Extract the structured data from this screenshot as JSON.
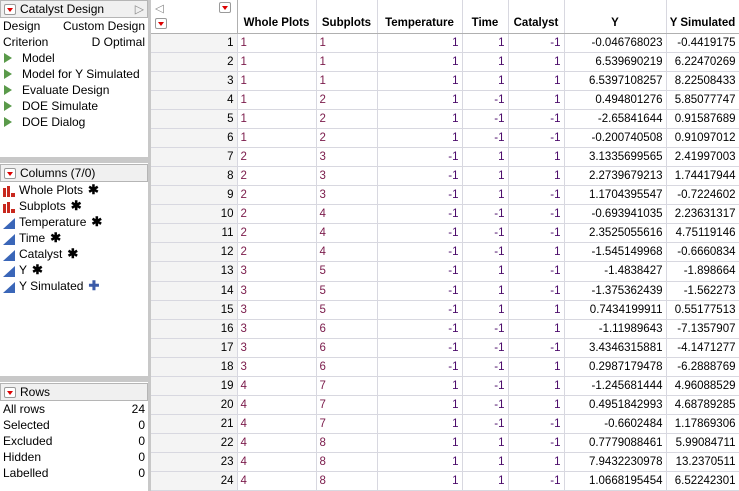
{
  "design_panel": {
    "title": "Catalyst Design",
    "rows": [
      {
        "label": "Design",
        "value": "Custom Design"
      },
      {
        "label": "Criterion",
        "value": "D Optimal"
      }
    ],
    "scripts": [
      "Model",
      "Model for Y Simulated",
      "Evaluate Design",
      "DOE Simulate",
      "DOE Dialog"
    ]
  },
  "columns_panel": {
    "title": "Columns (7/0)",
    "items": [
      {
        "name": "Whole Plots",
        "type": "nominal",
        "badge": "asterisk"
      },
      {
        "name": "Subplots",
        "type": "nominal",
        "badge": "asterisk"
      },
      {
        "name": "Temperature",
        "type": "continuous",
        "badge": "asterisk"
      },
      {
        "name": "Time",
        "type": "continuous",
        "badge": "asterisk"
      },
      {
        "name": "Catalyst",
        "type": "continuous",
        "badge": "asterisk"
      },
      {
        "name": "Y",
        "type": "continuous",
        "badge": "asterisk"
      },
      {
        "name": "Y Simulated",
        "type": "continuous",
        "badge": "plus"
      }
    ]
  },
  "rows_panel": {
    "title": "Rows",
    "items": [
      {
        "label": "All rows",
        "value": "24"
      },
      {
        "label": "Selected",
        "value": "0"
      },
      {
        "label": "Excluded",
        "value": "0"
      },
      {
        "label": "Hidden",
        "value": "0"
      },
      {
        "label": "Labelled",
        "value": "0"
      }
    ]
  },
  "table": {
    "headers": [
      "Whole Plots",
      "Subplots",
      "Temperature",
      "Time",
      "Catalyst",
      "Y",
      "Y Simulated"
    ],
    "rows": [
      [
        "1",
        "1",
        "1",
        "1",
        "-1",
        "-0.046768023",
        "-0.4419175"
      ],
      [
        "1",
        "1",
        "1",
        "1",
        "1",
        "6.539690219",
        "6.22470269"
      ],
      [
        "1",
        "1",
        "1",
        "1",
        "1",
        "6.5397108257",
        "8.22508433"
      ],
      [
        "1",
        "2",
        "1",
        "-1",
        "1",
        "0.494801276",
        "5.85077747"
      ],
      [
        "1",
        "2",
        "1",
        "-1",
        "-1",
        "-2.65841644",
        "0.91587689"
      ],
      [
        "1",
        "2",
        "1",
        "-1",
        "-1",
        "-0.200740508",
        "0.91097012"
      ],
      [
        "2",
        "3",
        "-1",
        "1",
        "1",
        "3.1335699565",
        "2.41997003"
      ],
      [
        "2",
        "3",
        "-1",
        "1",
        "1",
        "2.2739679213",
        "1.74417944"
      ],
      [
        "2",
        "3",
        "-1",
        "1",
        "-1",
        "1.1704395547",
        "-0.7224602"
      ],
      [
        "2",
        "4",
        "-1",
        "-1",
        "-1",
        "-0.693941035",
        "2.23631317"
      ],
      [
        "2",
        "4",
        "-1",
        "-1",
        "-1",
        "2.3525055616",
        "4.75119146"
      ],
      [
        "2",
        "4",
        "-1",
        "-1",
        "1",
        "-1.545149968",
        "-0.6660834"
      ],
      [
        "3",
        "5",
        "-1",
        "1",
        "-1",
        "-1.4838427",
        "-1.898664"
      ],
      [
        "3",
        "5",
        "-1",
        "1",
        "-1",
        "-1.375362439",
        "-1.562273"
      ],
      [
        "3",
        "5",
        "-1",
        "1",
        "1",
        "0.7434199911",
        "0.55177513"
      ],
      [
        "3",
        "6",
        "-1",
        "-1",
        "1",
        "-1.11989643",
        "-7.1357907"
      ],
      [
        "3",
        "6",
        "-1",
        "-1",
        "-1",
        "3.4346315881",
        "-4.1471277"
      ],
      [
        "3",
        "6",
        "-1",
        "-1",
        "1",
        "0.2987179478",
        "-6.2888769"
      ],
      [
        "4",
        "7",
        "1",
        "-1",
        "1",
        "-1.245681444",
        "4.96088529"
      ],
      [
        "4",
        "7",
        "1",
        "-1",
        "1",
        "0.4951842993",
        "4.68789285"
      ],
      [
        "4",
        "7",
        "1",
        "-1",
        "-1",
        "-0.6602484",
        "1.17869306"
      ],
      [
        "4",
        "8",
        "1",
        "1",
        "-1",
        "0.7779088461",
        "5.99084711"
      ],
      [
        "4",
        "8",
        "1",
        "1",
        "1",
        "7.9432230978",
        "13.2370511"
      ],
      [
        "4",
        "8",
        "1",
        "1",
        "-1",
        "1.0668195454",
        "6.52242301"
      ]
    ]
  }
}
